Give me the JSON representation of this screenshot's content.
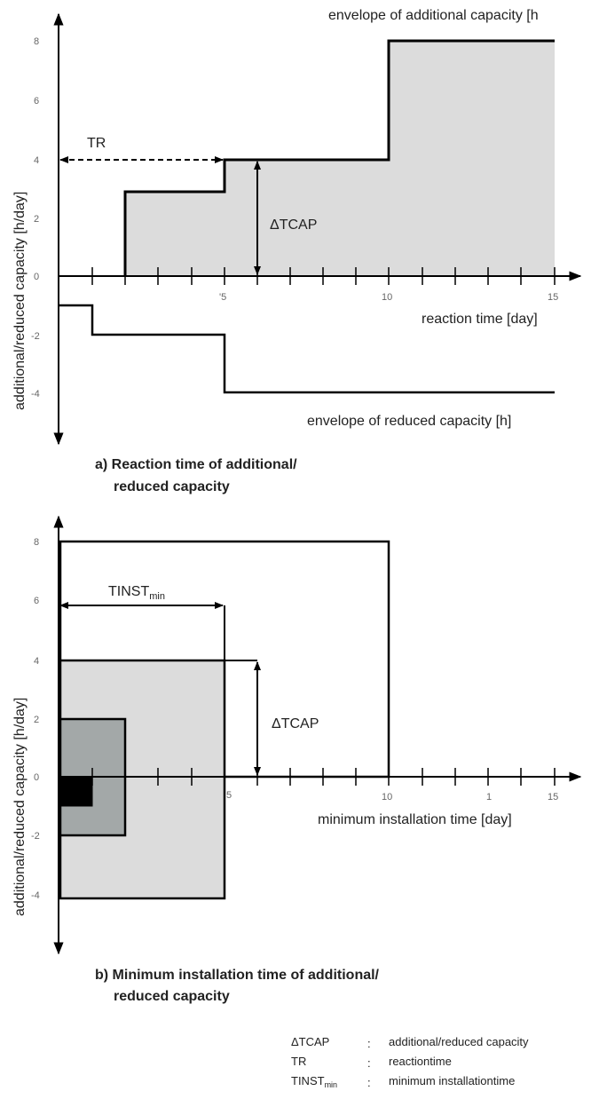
{
  "panel_a": {
    "envelope_additional_label": "envelope of additional capacity [h",
    "envelope_reduced_label": "envelope of reduced capacity [h]",
    "ylabel": "additional/reduced capacity [h/day]",
    "xlabel": "reaction time [day]",
    "y_ticks": [
      "8",
      "6",
      "4",
      "2",
      "0",
      "-2",
      "-4"
    ],
    "x_ticks": [
      "'5",
      "10",
      "15"
    ],
    "tr_label": "TR",
    "dtcap_label": "ΔTCAP",
    "caption_line1": "a) Reaction time of additional/",
    "caption_line2": "reduced capacity"
  },
  "panel_b": {
    "ylabel": "additional/reduced capacity [h/day]",
    "xlabel": "minimum installation time [day]",
    "y_ticks": [
      "8",
      "6",
      "4",
      "2",
      "0",
      "-2",
      "-4"
    ],
    "x_ticks": [
      "5",
      "10",
      "1",
      "15"
    ],
    "tinst_label": "TINST",
    "tinst_sub": "min",
    "dtcap_label": "ΔTCAP",
    "caption_line1": "b) Minimum installation time of additional/",
    "caption_line2": "reduced capacity"
  },
  "legend": [
    {
      "abbr": "ΔTCAP",
      "sep": ":",
      "desc": "additional/reduced capacity"
    },
    {
      "abbr": "TR",
      "sep": ":",
      "desc": "reactiontime"
    },
    {
      "abbr": "TINST",
      "sub": "min",
      "sep": ":",
      "desc": "minimum installationtime"
    }
  ],
  "colors": {
    "light_fill": "#dcdcdc",
    "mid_fill": "#a3a8a8",
    "dark_fill": "#000000",
    "line": "#000000"
  }
}
